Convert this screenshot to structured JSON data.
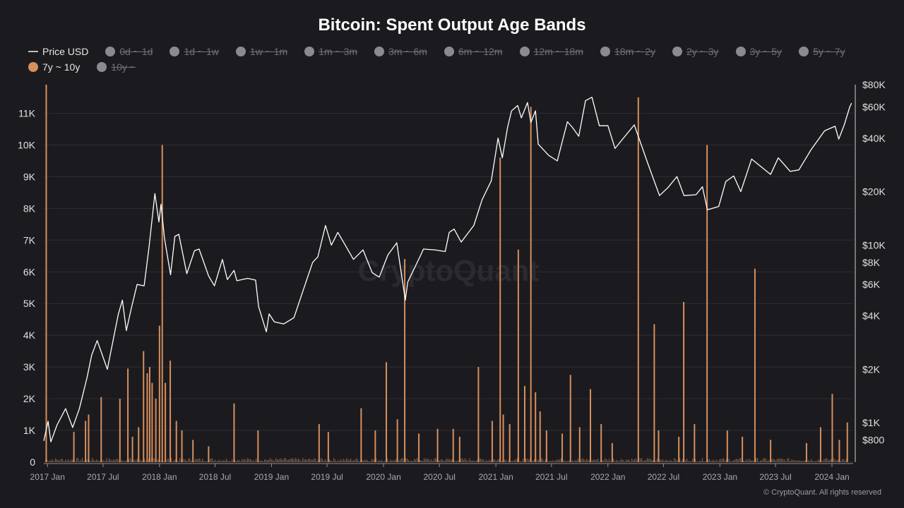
{
  "chart_data": {
    "type": "bar",
    "title": "Bitcoin: Spent Output Age Bands",
    "footer": "© CryptoQuant. All rights reserved",
    "watermark": "CryptoQuant",
    "grid": true,
    "colors": {
      "background": "#1b1b1f",
      "bar": "#d88e5a",
      "price_line": "#ffffff",
      "disabled": "#8a8a90"
    },
    "legend": {
      "placement": "top-left",
      "items": [
        {
          "label": "Price USD",
          "kind": "line",
          "enabled": true
        },
        {
          "label": "0d ~ 1d",
          "kind": "dot",
          "enabled": false
        },
        {
          "label": "1d ~ 1w",
          "kind": "dot",
          "enabled": false
        },
        {
          "label": "1w ~ 1m",
          "kind": "dot",
          "enabled": false
        },
        {
          "label": "1m ~ 3m",
          "kind": "dot",
          "enabled": false
        },
        {
          "label": "3m ~ 6m",
          "kind": "dot",
          "enabled": false
        },
        {
          "label": "6m ~ 12m",
          "kind": "dot",
          "enabled": false
        },
        {
          "label": "12m ~ 18m",
          "kind": "dot",
          "enabled": false
        },
        {
          "label": "18m ~ 2y",
          "kind": "dot",
          "enabled": false
        },
        {
          "label": "2y ~ 3y",
          "kind": "dot",
          "enabled": false
        },
        {
          "label": "3y ~ 5y",
          "kind": "dot",
          "enabled": false
        },
        {
          "label": "5y ~ 7y",
          "kind": "dot",
          "enabled": false
        },
        {
          "label": "7y ~ 10y",
          "kind": "dot",
          "enabled": true
        },
        {
          "label": "10y ~",
          "kind": "dot",
          "enabled": false
        }
      ]
    },
    "x_axis": {
      "start": "2016-12-20",
      "end": "2024-03-10",
      "ticks": [
        {
          "label": "2017 Jan",
          "date": "2017-01-01"
        },
        {
          "label": "2017 Jul",
          "date": "2017-07-01"
        },
        {
          "label": "2018 Jan",
          "date": "2018-01-01"
        },
        {
          "label": "2018 Jul",
          "date": "2018-07-01"
        },
        {
          "label": "2019 Jan",
          "date": "2019-01-01"
        },
        {
          "label": "2019 Jul",
          "date": "2019-07-01"
        },
        {
          "label": "2020 Jan",
          "date": "2020-01-01"
        },
        {
          "label": "2020 Jul",
          "date": "2020-07-01"
        },
        {
          "label": "2021 Jan",
          "date": "2021-01-01"
        },
        {
          "label": "2021 Jul",
          "date": "2021-07-01"
        },
        {
          "label": "2022 Jan",
          "date": "2022-01-01"
        },
        {
          "label": "2022 Jul",
          "date": "2022-07-01"
        },
        {
          "label": "2023 Jan",
          "date": "2023-01-01"
        },
        {
          "label": "2023 Jul",
          "date": "2023-07-01"
        },
        {
          "label": "2024 Jan",
          "date": "2024-01-01"
        }
      ]
    },
    "y_left": {
      "ylim": [
        0,
        11900
      ],
      "ticks": [
        {
          "label": "0",
          "value": 0
        },
        {
          "label": "1K",
          "value": 1000
        },
        {
          "label": "2K",
          "value": 2000
        },
        {
          "label": "3K",
          "value": 3000
        },
        {
          "label": "4K",
          "value": 4000
        },
        {
          "label": "5K",
          "value": 5000
        },
        {
          "label": "6K",
          "value": 6000
        },
        {
          "label": "7K",
          "value": 7000
        },
        {
          "label": "8K",
          "value": 8000
        },
        {
          "label": "9K",
          "value": 9000
        },
        {
          "label": "10K",
          "value": 10000
        },
        {
          "label": "11K",
          "value": 11000
        }
      ]
    },
    "y_right": {
      "scale": "log",
      "ylim": [
        600,
        80000
      ],
      "ticks": [
        {
          "label": "$800",
          "value": 800
        },
        {
          "label": "$1K",
          "value": 1000
        },
        {
          "label": "$2K",
          "value": 2000
        },
        {
          "label": "$4K",
          "value": 4000
        },
        {
          "label": "$6K",
          "value": 6000
        },
        {
          "label": "$8K",
          "value": 8000
        },
        {
          "label": "$10K",
          "value": 10000
        },
        {
          "label": "$20K",
          "value": 20000
        },
        {
          "label": "$40K",
          "value": 40000
        },
        {
          "label": "$60K",
          "value": 60000
        },
        {
          "label": "$80K",
          "value": 80000
        }
      ]
    },
    "series": [
      {
        "name": "7y ~ 10y",
        "type": "bar",
        "points": [
          [
            "2016-12-28",
            11900
          ],
          [
            "2017-03-28",
            950
          ],
          [
            "2017-05-05",
            1300
          ],
          [
            "2017-05-15",
            1500
          ],
          [
            "2017-06-25",
            2050
          ],
          [
            "2017-08-25",
            2000
          ],
          [
            "2017-09-20",
            2950
          ],
          [
            "2017-10-05",
            800
          ],
          [
            "2017-10-25",
            1100
          ],
          [
            "2017-11-10",
            3500
          ],
          [
            "2017-11-22",
            2800
          ],
          [
            "2017-11-30",
            3000
          ],
          [
            "2017-12-08",
            2500
          ],
          [
            "2017-12-20",
            2000
          ],
          [
            "2018-01-01",
            4300
          ],
          [
            "2018-01-10",
            10000
          ],
          [
            "2018-01-20",
            2500
          ],
          [
            "2018-02-05",
            3200
          ],
          [
            "2018-02-25",
            1300
          ],
          [
            "2018-03-15",
            1000
          ],
          [
            "2018-04-20",
            700
          ],
          [
            "2018-06-10",
            500
          ],
          [
            "2018-09-01",
            1850
          ],
          [
            "2018-11-18",
            1000
          ],
          [
            "2019-06-05",
            1200
          ],
          [
            "2019-07-05",
            950
          ],
          [
            "2019-10-20",
            1700
          ],
          [
            "2019-12-05",
            1000
          ],
          [
            "2020-01-10",
            3150
          ],
          [
            "2020-02-15",
            1350
          ],
          [
            "2020-03-10",
            6400
          ],
          [
            "2020-04-25",
            900
          ],
          [
            "2020-06-25",
            1050
          ],
          [
            "2020-08-15",
            1050
          ],
          [
            "2020-09-05",
            800
          ],
          [
            "2020-11-05",
            3000
          ],
          [
            "2020-12-20",
            1300
          ],
          [
            "2021-01-15",
            9600
          ],
          [
            "2021-01-25",
            1500
          ],
          [
            "2021-02-15",
            1200
          ],
          [
            "2021-03-15",
            6700
          ],
          [
            "2021-04-05",
            2400
          ],
          [
            "2021-04-25",
            11200
          ],
          [
            "2021-05-10",
            2200
          ],
          [
            "2021-05-25",
            1600
          ],
          [
            "2021-06-15",
            1000
          ],
          [
            "2021-08-05",
            900
          ],
          [
            "2021-09-01",
            2750
          ],
          [
            "2021-10-01",
            1100
          ],
          [
            "2021-11-05",
            2300
          ],
          [
            "2021-12-10",
            1200
          ],
          [
            "2022-01-15",
            600
          ],
          [
            "2022-04-10",
            11500
          ],
          [
            "2022-06-01",
            4350
          ],
          [
            "2022-06-15",
            1000
          ],
          [
            "2022-08-20",
            800
          ],
          [
            "2022-09-05",
            5050
          ],
          [
            "2022-10-10",
            1200
          ],
          [
            "2022-11-20",
            10000
          ],
          [
            "2023-01-25",
            1000
          ],
          [
            "2023-03-15",
            800
          ],
          [
            "2023-04-25",
            6100
          ],
          [
            "2023-06-15",
            700
          ],
          [
            "2023-10-10",
            600
          ],
          [
            "2023-11-25",
            1100
          ],
          [
            "2024-01-02",
            2150
          ],
          [
            "2024-01-25",
            700
          ],
          [
            "2024-02-20",
            1250
          ]
        ]
      },
      {
        "name": "Price USD",
        "type": "line",
        "points": [
          [
            "2016-12-20",
            790
          ],
          [
            "2017-01-03",
            1020
          ],
          [
            "2017-01-12",
            780
          ],
          [
            "2017-02-01",
            970
          ],
          [
            "2017-03-01",
            1200
          ],
          [
            "2017-03-24",
            940
          ],
          [
            "2017-04-15",
            1200
          ],
          [
            "2017-05-10",
            1800
          ],
          [
            "2017-05-25",
            2400
          ],
          [
            "2017-06-12",
            2900
          ],
          [
            "2017-07-15",
            2000
          ],
          [
            "2017-08-01",
            2800
          ],
          [
            "2017-08-20",
            4100
          ],
          [
            "2017-09-02",
            4900
          ],
          [
            "2017-09-15",
            3300
          ],
          [
            "2017-10-01",
            4400
          ],
          [
            "2017-10-20",
            6000
          ],
          [
            "2017-11-12",
            5900
          ],
          [
            "2017-11-28",
            9800
          ],
          [
            "2017-12-17",
            19500
          ],
          [
            "2017-12-30",
            13500
          ],
          [
            "2018-01-06",
            17000
          ],
          [
            "2018-01-17",
            11000
          ],
          [
            "2018-02-06",
            6800
          ],
          [
            "2018-02-20",
            11200
          ],
          [
            "2018-03-05",
            11500
          ],
          [
            "2018-03-31",
            6900
          ],
          [
            "2018-04-25",
            9300
          ],
          [
            "2018-05-10",
            9500
          ],
          [
            "2018-06-10",
            6700
          ],
          [
            "2018-06-29",
            5900
          ],
          [
            "2018-07-25",
            8300
          ],
          [
            "2018-08-10",
            6400
          ],
          [
            "2018-09-01",
            7200
          ],
          [
            "2018-09-10",
            6300
          ],
          [
            "2018-10-15",
            6500
          ],
          [
            "2018-11-10",
            6350
          ],
          [
            "2018-11-20",
            4500
          ],
          [
            "2018-12-15",
            3250
          ],
          [
            "2018-12-24",
            4100
          ],
          [
            "2019-01-10",
            3700
          ],
          [
            "2019-02-10",
            3600
          ],
          [
            "2019-03-15",
            3900
          ],
          [
            "2019-04-05",
            5000
          ],
          [
            "2019-05-15",
            8000
          ],
          [
            "2019-06-01",
            8600
          ],
          [
            "2019-06-26",
            12900
          ],
          [
            "2019-07-15",
            10000
          ],
          [
            "2019-08-05",
            11800
          ],
          [
            "2019-09-01",
            9800
          ],
          [
            "2019-09-25",
            8300
          ],
          [
            "2019-10-26",
            9400
          ],
          [
            "2019-11-25",
            7000
          ],
          [
            "2019-12-18",
            6600
          ],
          [
            "2020-01-15",
            8800
          ],
          [
            "2020-02-13",
            10300
          ],
          [
            "2020-03-12",
            4900
          ],
          [
            "2020-03-20",
            6200
          ],
          [
            "2020-04-30",
            8700
          ],
          [
            "2020-05-10",
            9500
          ],
          [
            "2020-06-15",
            9400
          ],
          [
            "2020-07-20",
            9200
          ],
          [
            "2020-08-02",
            11800
          ],
          [
            "2020-08-18",
            12300
          ],
          [
            "2020-09-10",
            10400
          ],
          [
            "2020-10-21",
            12900
          ],
          [
            "2020-11-17",
            18000
          ],
          [
            "2020-12-17",
            23000
          ],
          [
            "2021-01-08",
            40000
          ],
          [
            "2021-01-22",
            31000
          ],
          [
            "2021-02-08",
            46000
          ],
          [
            "2021-02-21",
            57000
          ],
          [
            "2021-03-13",
            61000
          ],
          [
            "2021-03-25",
            52000
          ],
          [
            "2021-04-14",
            63500
          ],
          [
            "2021-04-25",
            49000
          ],
          [
            "2021-05-10",
            57000
          ],
          [
            "2021-05-19",
            37000
          ],
          [
            "2021-06-22",
            32000
          ],
          [
            "2021-07-20",
            29800
          ],
          [
            "2021-08-22",
            49500
          ],
          [
            "2021-09-07",
            46000
          ],
          [
            "2021-09-28",
            41000
          ],
          [
            "2021-10-20",
            65000
          ],
          [
            "2021-11-10",
            68000
          ],
          [
            "2021-12-04",
            47000
          ],
          [
            "2022-01-01",
            47000
          ],
          [
            "2022-01-24",
            35000
          ],
          [
            "2022-03-28",
            47500
          ],
          [
            "2022-05-12",
            28500
          ],
          [
            "2022-06-18",
            19000
          ],
          [
            "2022-07-15",
            21000
          ],
          [
            "2022-08-14",
            24300
          ],
          [
            "2022-09-06",
            19000
          ],
          [
            "2022-10-15",
            19200
          ],
          [
            "2022-11-05",
            21300
          ],
          [
            "2022-11-21",
            15800
          ],
          [
            "2022-12-28",
            16500
          ],
          [
            "2023-01-20",
            22800
          ],
          [
            "2023-02-15",
            24500
          ],
          [
            "2023-03-10",
            20000
          ],
          [
            "2023-04-14",
            30500
          ],
          [
            "2023-06-15",
            25000
          ],
          [
            "2023-07-10",
            31000
          ],
          [
            "2023-08-18",
            26000
          ],
          [
            "2023-09-15",
            26500
          ],
          [
            "2023-10-25",
            34500
          ],
          [
            "2023-12-08",
            44000
          ],
          [
            "2024-01-11",
            46700
          ],
          [
            "2024-01-23",
            39500
          ],
          [
            "2024-02-10",
            47500
          ],
          [
            "2024-02-28",
            60000
          ],
          [
            "2024-03-05",
            63000
          ]
        ]
      }
    ]
  }
}
